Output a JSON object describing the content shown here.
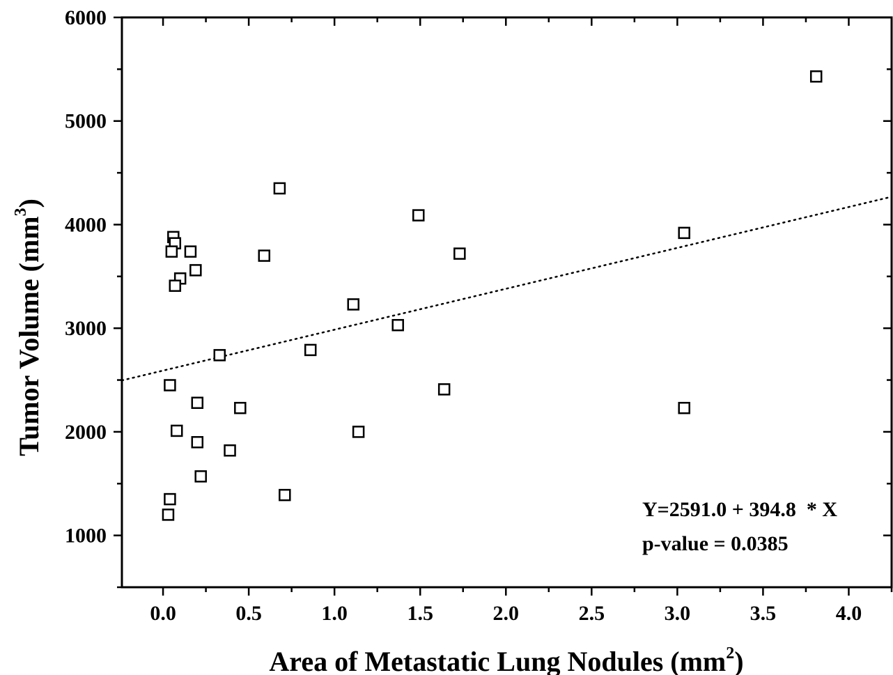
{
  "chart_data": {
    "type": "scatter",
    "xlabel": "Area of Metastatic Lung Nodules (mm",
    "xlabel_sup": "2",
    "xlabel_end": ")",
    "ylabel": "Tumor Volume (mm",
    "ylabel_sup": "3",
    "ylabel_end": ")",
    "xlim": [
      -0.24,
      4.25
    ],
    "ylim": [
      500,
      6000
    ],
    "x_ticks": [
      {
        "v": 0.0,
        "label": "0.0"
      },
      {
        "v": 0.5,
        "label": "0.5"
      },
      {
        "v": 1.0,
        "label": "1.0"
      },
      {
        "v": 1.5,
        "label": "1.5"
      },
      {
        "v": 2.0,
        "label": "2.0"
      },
      {
        "v": 2.5,
        "label": "2.5"
      },
      {
        "v": 3.0,
        "label": "3.0"
      },
      {
        "v": 3.5,
        "label": "3.5"
      },
      {
        "v": 4.0,
        "label": "4.0"
      }
    ],
    "y_ticks": [
      {
        "v": 1000,
        "label": "1000"
      },
      {
        "v": 2000,
        "label": "2000"
      },
      {
        "v": 3000,
        "label": "3000"
      },
      {
        "v": 4000,
        "label": "4000"
      },
      {
        "v": 5000,
        "label": "5000"
      },
      {
        "v": 6000,
        "label": "6000"
      }
    ],
    "points": [
      {
        "x": 0.06,
        "y": 3880
      },
      {
        "x": 0.07,
        "y": 3820
      },
      {
        "x": 0.05,
        "y": 3740
      },
      {
        "x": 0.16,
        "y": 3740
      },
      {
        "x": 0.19,
        "y": 3560
      },
      {
        "x": 0.1,
        "y": 3480
      },
      {
        "x": 0.07,
        "y": 3410
      },
      {
        "x": 0.68,
        "y": 4350
      },
      {
        "x": 0.59,
        "y": 3700
      },
      {
        "x": 1.49,
        "y": 4090
      },
      {
        "x": 1.73,
        "y": 3720
      },
      {
        "x": 1.11,
        "y": 3230
      },
      {
        "x": 1.37,
        "y": 3030
      },
      {
        "x": 0.86,
        "y": 2790
      },
      {
        "x": 0.33,
        "y": 2740
      },
      {
        "x": 0.04,
        "y": 2450
      },
      {
        "x": 0.2,
        "y": 2280
      },
      {
        "x": 0.45,
        "y": 2230
      },
      {
        "x": 1.64,
        "y": 2410
      },
      {
        "x": 0.08,
        "y": 2010
      },
      {
        "x": 1.14,
        "y": 2000
      },
      {
        "x": 0.2,
        "y": 1900
      },
      {
        "x": 0.39,
        "y": 1820
      },
      {
        "x": 0.22,
        "y": 1570
      },
      {
        "x": 0.71,
        "y": 1390
      },
      {
        "x": 0.04,
        "y": 1350
      },
      {
        "x": 0.03,
        "y": 1200
      },
      {
        "x": 3.04,
        "y": 3920
      },
      {
        "x": 3.04,
        "y": 2230
      },
      {
        "x": 3.81,
        "y": 5430
      }
    ],
    "fit": {
      "intercept": 2591.0,
      "slope": 394.8,
      "style": "dotted"
    },
    "annotations": [
      "Y=2591.0 + 394.8  * X",
      "p-value = 0.0385"
    ],
    "grid": false,
    "legend": "none"
  }
}
